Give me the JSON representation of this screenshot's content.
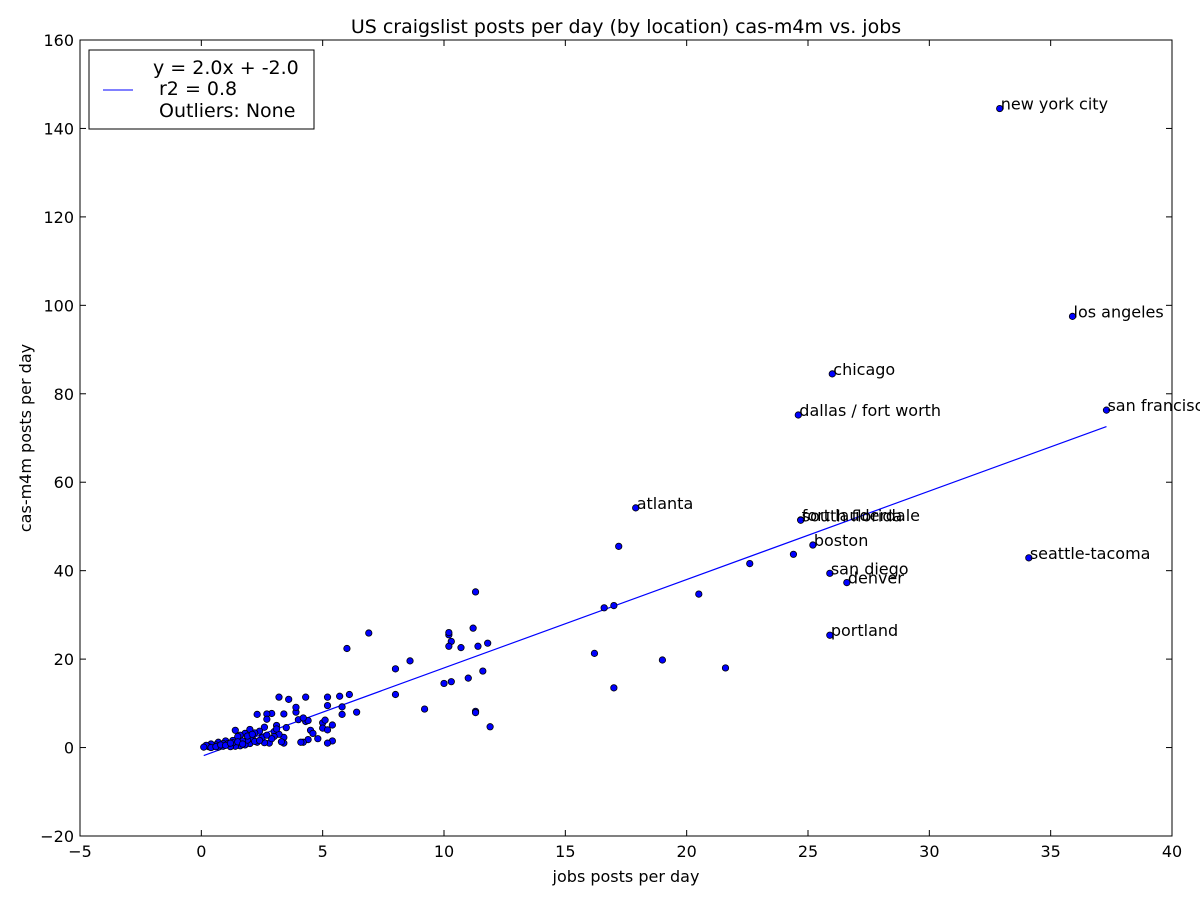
{
  "chart_data": {
    "type": "scatter",
    "title": "US craigslist posts per day (by location) cas-m4m vs. jobs",
    "xlabel": "jobs posts per day",
    "ylabel": "cas-m4m posts per day",
    "xlim": [
      -5,
      40
    ],
    "ylim": [
      -20,
      160
    ],
    "x_ticks": [
      -5,
      0,
      5,
      10,
      15,
      20,
      25,
      30,
      35,
      40
    ],
    "y_ticks": [
      -20,
      0,
      20,
      40,
      60,
      80,
      100,
      120,
      140,
      160
    ],
    "grid": false,
    "legend_placement": "top-left",
    "legend": {
      "line1": "y = 2.0x + -2.0",
      "line2": "r2 = 0.8",
      "line3": "Outliers: None"
    },
    "colors": {
      "points": "#0000ff",
      "fit_line": "#0000ff",
      "axes": "#000000"
    },
    "fit_line": {
      "slope": 2.0,
      "intercept": -2.0,
      "x_range": [
        0.1,
        37.3
      ]
    },
    "labeled_points": [
      {
        "label": "new york city",
        "x": 32.9,
        "y": 144.5
      },
      {
        "label": "los angeles",
        "x": 35.9,
        "y": 97.5
      },
      {
        "label": "chicago",
        "x": 26.0,
        "y": 84.5
      },
      {
        "label": "san francisco",
        "x": 37.3,
        "y": 76.3
      },
      {
        "label": "dallas / fort worth",
        "x": 24.6,
        "y": 75.2
      },
      {
        "label": "atlanta",
        "x": 17.9,
        "y": 54.2
      },
      {
        "label": "fort lauderdale",
        "x": 24.7,
        "y": 51.5
      },
      {
        "label": "south florida",
        "x": 24.7,
        "y": 51.4
      },
      {
        "label": "boston",
        "x": 25.2,
        "y": 45.8
      },
      {
        "label": "seattle-tacoma",
        "x": 34.1,
        "y": 42.9
      },
      {
        "label": "san diego",
        "x": 25.9,
        "y": 39.4
      },
      {
        "label": "denver",
        "x": 26.6,
        "y": 37.3
      },
      {
        "label": "portland",
        "x": 25.9,
        "y": 25.4
      }
    ],
    "points": [
      [
        24.4,
        43.7
      ],
      [
        22.6,
        41.6
      ],
      [
        17.2,
        45.5
      ],
      [
        20.5,
        34.7
      ],
      [
        16.6,
        31.6
      ],
      [
        17.0,
        32.1
      ],
      [
        16.2,
        21.3
      ],
      [
        19.0,
        19.8
      ],
      [
        21.6,
        18.0
      ],
      [
        17.0,
        13.5
      ],
      [
        11.3,
        35.2
      ],
      [
        11.8,
        23.6
      ],
      [
        11.4,
        22.9
      ],
      [
        11.2,
        27.0
      ],
      [
        10.2,
        25.5
      ],
      [
        10.2,
        26.0
      ],
      [
        10.3,
        24.0
      ],
      [
        10.7,
        22.6
      ],
      [
        10.2,
        22.9
      ],
      [
        6.9,
        25.9
      ],
      [
        6.0,
        22.4
      ],
      [
        8.6,
        19.6
      ],
      [
        8.0,
        17.8
      ],
      [
        11.6,
        17.3
      ],
      [
        11.0,
        15.7
      ],
      [
        10.3,
        14.9
      ],
      [
        10.0,
        14.5
      ],
      [
        8.0,
        12.0
      ],
      [
        6.1,
        12.0
      ],
      [
        5.7,
        11.6
      ],
      [
        5.2,
        11.4
      ],
      [
        4.3,
        11.4
      ],
      [
        3.6,
        10.9
      ],
      [
        3.2,
        11.4
      ],
      [
        11.3,
        8.2
      ],
      [
        11.3,
        7.9
      ],
      [
        9.2,
        8.7
      ],
      [
        6.4,
        8.0
      ],
      [
        5.8,
        9.2
      ],
      [
        5.8,
        7.5
      ],
      [
        5.2,
        9.5
      ],
      [
        11.9,
        4.7
      ],
      [
        5.4,
        5.1
      ],
      [
        5.0,
        5.6
      ],
      [
        5.0,
        4.4
      ],
      [
        5.2,
        4.0
      ],
      [
        4.5,
        3.9
      ],
      [
        4.3,
        5.9
      ],
      [
        4.0,
        6.3
      ],
      [
        3.9,
        8.0
      ],
      [
        3.9,
        9.1
      ],
      [
        3.4,
        7.6
      ],
      [
        2.9,
        7.7
      ],
      [
        2.7,
        7.6
      ],
      [
        2.3,
        7.5
      ],
      [
        4.8,
        2.0
      ],
      [
        5.4,
        1.5
      ],
      [
        5.2,
        1.0
      ],
      [
        4.4,
        1.8
      ],
      [
        4.2,
        1.2
      ],
      [
        4.1,
        1.2
      ],
      [
        3.4,
        2.3
      ],
      [
        3.4,
        1.0
      ],
      [
        3.0,
        3.6
      ],
      [
        3.1,
        5.0
      ],
      [
        2.7,
        6.4
      ],
      [
        2.6,
        4.6
      ],
      [
        2.4,
        3.7
      ],
      [
        2.2,
        3.3
      ],
      [
        2.0,
        4.1
      ],
      [
        1.8,
        3.2
      ],
      [
        1.6,
        2.8
      ],
      [
        1.5,
        2.5
      ],
      [
        1.4,
        3.9
      ],
      [
        1.3,
        1.6
      ],
      [
        1.1,
        0.7
      ],
      [
        1.0,
        1.5
      ],
      [
        0.9,
        0.9
      ],
      [
        0.8,
        0.4
      ],
      [
        0.7,
        1.2
      ],
      [
        0.6,
        0.6
      ],
      [
        0.5,
        0.3
      ],
      [
        0.4,
        0.8
      ],
      [
        0.3,
        0.2
      ],
      [
        0.2,
        0.5
      ],
      [
        0.1,
        0.1
      ],
      [
        2.8,
        1.0
      ],
      [
        2.6,
        1.1
      ],
      [
        2.3,
        1.2
      ],
      [
        2.0,
        0.9
      ],
      [
        1.8,
        0.6
      ],
      [
        1.6,
        0.4
      ],
      [
        1.4,
        0.3
      ],
      [
        1.2,
        0.2
      ],
      [
        2.5,
        2.2
      ],
      [
        2.1,
        2.0
      ],
      [
        1.9,
        1.7
      ],
      [
        1.7,
        1.5
      ],
      [
        3.2,
        3.0
      ],
      [
        3.0,
        2.5
      ],
      [
        4.6,
        3.2
      ],
      [
        4.4,
        6.1
      ],
      [
        0.7,
        0.1
      ],
      [
        0.9,
        0.3
      ],
      [
        1.1,
        0.9
      ],
      [
        1.3,
        1.1
      ],
      [
        1.5,
        1.3
      ],
      [
        1.7,
        0.8
      ],
      [
        2.2,
        1.4
      ],
      [
        2.4,
        1.6
      ],
      [
        2.9,
        2.0
      ],
      [
        3.3,
        1.3
      ],
      [
        3.5,
        4.5
      ],
      [
        4.2,
        6.7
      ],
      [
        5.1,
        6.2
      ],
      [
        0.4,
        0.0
      ],
      [
        0.6,
        0.2
      ],
      [
        0.8,
        0.6
      ],
      [
        1.0,
        0.5
      ],
      [
        1.2,
        1.0
      ],
      [
        1.9,
        2.6
      ],
      [
        2.1,
        3.0
      ],
      [
        2.7,
        2.8
      ],
      [
        3.1,
        4.2
      ]
    ]
  }
}
